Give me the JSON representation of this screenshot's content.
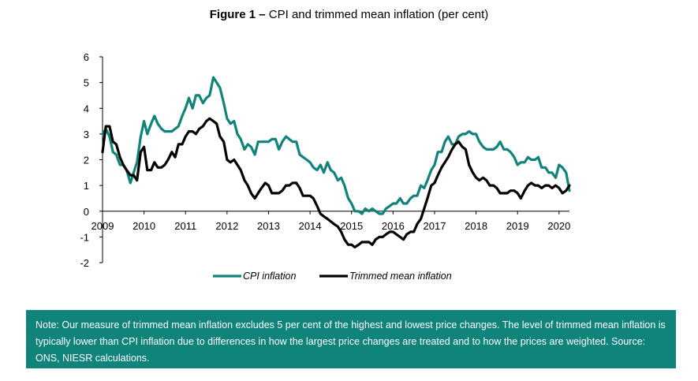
{
  "header": {
    "figure_label": "Figure 1 –",
    "figure_title": "CPI and trimmed mean inflation (per cent)"
  },
  "note": {
    "text": "Note: Our measure of trimmed mean inflation excludes 5 per cent of the highest and lowest price changes. The level of trimmed mean inflation is typically lower than CPI inflation due to differences in how the largest price changes are treated and to how the prices are weighted. Source: ONS, NIESR calculations."
  },
  "colors": {
    "cpi": "#10837a",
    "trimmed": "#000000",
    "note_bg": "#10837a"
  },
  "chart_data": {
    "type": "line",
    "title": "CPI and trimmed mean inflation (per cent)",
    "xlabel": "",
    "ylabel": "",
    "xlim": [
      2009.0,
      2020.25
    ],
    "ylim": [
      -2,
      6
    ],
    "yticks": [
      "6",
      "5",
      "4",
      "3",
      "2",
      "1",
      "0",
      "-1",
      "-2"
    ],
    "ytick_values": [
      6,
      5,
      4,
      3,
      2,
      1,
      0,
      -1,
      -2
    ],
    "xticks": [
      "2009",
      "2010",
      "2011",
      "2012",
      "2013",
      "2014",
      "2015",
      "2016",
      "2017",
      "2018",
      "2019",
      "2020"
    ],
    "xtick_values": [
      2009,
      2010,
      2011,
      2012,
      2013,
      2014,
      2015,
      2016,
      2017,
      2018,
      2019,
      2020
    ],
    "grid": false,
    "legend": "bottom",
    "series": [
      {
        "name": "CPI inflation",
        "x": [
          2009.0,
          2009.08,
          2009.17,
          2009.25,
          2009.33,
          2009.42,
          2009.5,
          2009.58,
          2009.67,
          2009.75,
          2009.83,
          2009.92,
          2010.0,
          2010.08,
          2010.17,
          2010.25,
          2010.33,
          2010.42,
          2010.5,
          2010.58,
          2010.67,
          2010.75,
          2010.83,
          2010.92,
          2011.0,
          2011.08,
          2011.17,
          2011.25,
          2011.33,
          2011.42,
          2011.5,
          2011.58,
          2011.67,
          2011.75,
          2011.83,
          2011.92,
          2012.0,
          2012.08,
          2012.17,
          2012.25,
          2012.33,
          2012.42,
          2012.5,
          2012.58,
          2012.67,
          2012.75,
          2012.83,
          2012.92,
          2013.0,
          2013.08,
          2013.17,
          2013.25,
          2013.33,
          2013.42,
          2013.5,
          2013.58,
          2013.67,
          2013.75,
          2013.83,
          2013.92,
          2014.0,
          2014.08,
          2014.17,
          2014.25,
          2014.33,
          2014.42,
          2014.5,
          2014.58,
          2014.67,
          2014.75,
          2014.83,
          2014.92,
          2015.0,
          2015.08,
          2015.17,
          2015.25,
          2015.33,
          2015.42,
          2015.5,
          2015.58,
          2015.67,
          2015.75,
          2015.83,
          2015.92,
          2016.0,
          2016.08,
          2016.17,
          2016.25,
          2016.33,
          2016.42,
          2016.5,
          2016.58,
          2016.67,
          2016.75,
          2016.83,
          2016.92,
          2017.0,
          2017.08,
          2017.17,
          2017.25,
          2017.33,
          2017.42,
          2017.5,
          2017.58,
          2017.67,
          2017.75,
          2017.83,
          2017.92,
          2018.0,
          2018.08,
          2018.17,
          2018.25,
          2018.33,
          2018.42,
          2018.5,
          2018.58,
          2018.67,
          2018.75,
          2018.83,
          2018.92,
          2019.0,
          2019.08,
          2019.17,
          2019.25,
          2019.33,
          2019.42,
          2019.5,
          2019.58,
          2019.67,
          2019.75,
          2019.83,
          2019.92,
          2020.0,
          2020.08,
          2020.17,
          2020.25
        ],
        "values": [
          3.0,
          3.2,
          2.9,
          2.3,
          2.2,
          1.8,
          1.8,
          1.6,
          1.1,
          1.5,
          1.9,
          2.9,
          3.5,
          3.0,
          3.4,
          3.7,
          3.4,
          3.2,
          3.1,
          3.1,
          3.1,
          3.2,
          3.3,
          3.7,
          4.0,
          4.4,
          4.0,
          4.5,
          4.5,
          4.2,
          4.4,
          4.5,
          5.2,
          5.0,
          4.8,
          4.2,
          3.6,
          3.4,
          3.5,
          3.0,
          2.8,
          2.4,
          2.6,
          2.5,
          2.2,
          2.7,
          2.7,
          2.7,
          2.7,
          2.8,
          2.8,
          2.4,
          2.7,
          2.9,
          2.8,
          2.7,
          2.7,
          2.2,
          2.1,
          2.0,
          1.9,
          1.7,
          1.6,
          1.8,
          1.5,
          1.9,
          1.6,
          1.5,
          1.2,
          1.3,
          1.0,
          0.5,
          0.3,
          0.0,
          0.0,
          -0.1,
          0.1,
          0.0,
          0.1,
          0.0,
          -0.1,
          -0.1,
          0.1,
          0.2,
          0.3,
          0.3,
          0.5,
          0.3,
          0.3,
          0.5,
          0.6,
          0.6,
          1.0,
          0.9,
          1.2,
          1.6,
          1.8,
          2.3,
          2.3,
          2.7,
          2.9,
          2.6,
          2.6,
          2.9,
          3.0,
          3.0,
          3.1,
          3.0,
          3.0,
          2.7,
          2.5,
          2.4,
          2.4,
          2.4,
          2.5,
          2.7,
          2.4,
          2.4,
          2.3,
          2.1,
          1.8,
          1.9,
          1.9,
          2.1,
          2.0,
          2.0,
          2.1,
          1.7,
          1.7,
          1.5,
          1.5,
          1.3,
          1.8,
          1.7,
          1.5,
          0.8
        ]
      },
      {
        "name": "Trimmed mean inflation",
        "x": [
          2009.0,
          2009.08,
          2009.17,
          2009.25,
          2009.33,
          2009.42,
          2009.5,
          2009.58,
          2009.67,
          2009.75,
          2009.83,
          2009.92,
          2010.0,
          2010.08,
          2010.17,
          2010.25,
          2010.33,
          2010.42,
          2010.5,
          2010.58,
          2010.67,
          2010.75,
          2010.83,
          2010.92,
          2011.0,
          2011.08,
          2011.17,
          2011.25,
          2011.33,
          2011.42,
          2011.5,
          2011.58,
          2011.67,
          2011.75,
          2011.83,
          2011.92,
          2012.0,
          2012.08,
          2012.17,
          2012.25,
          2012.33,
          2012.42,
          2012.5,
          2012.58,
          2012.67,
          2012.75,
          2012.83,
          2012.92,
          2013.0,
          2013.08,
          2013.17,
          2013.25,
          2013.33,
          2013.42,
          2013.5,
          2013.58,
          2013.67,
          2013.75,
          2013.83,
          2013.92,
          2014.0,
          2014.08,
          2014.17,
          2014.25,
          2014.33,
          2014.42,
          2014.5,
          2014.58,
          2014.67,
          2014.75,
          2014.83,
          2014.92,
          2015.0,
          2015.08,
          2015.17,
          2015.25,
          2015.33,
          2015.42,
          2015.5,
          2015.58,
          2015.67,
          2015.75,
          2015.83,
          2015.92,
          2016.0,
          2016.08,
          2016.17,
          2016.25,
          2016.33,
          2016.42,
          2016.5,
          2016.58,
          2016.67,
          2016.75,
          2016.83,
          2016.92,
          2017.0,
          2017.08,
          2017.17,
          2017.25,
          2017.33,
          2017.42,
          2017.5,
          2017.58,
          2017.67,
          2017.75,
          2017.83,
          2017.92,
          2018.0,
          2018.08,
          2018.17,
          2018.25,
          2018.33,
          2018.42,
          2018.5,
          2018.58,
          2018.67,
          2018.75,
          2018.83,
          2018.92,
          2019.0,
          2019.08,
          2019.17,
          2019.25,
          2019.33,
          2019.42,
          2019.5,
          2019.58,
          2019.67,
          2019.75,
          2019.83,
          2019.92,
          2020.0,
          2020.08,
          2020.17,
          2020.25
        ],
        "values": [
          2.3,
          3.3,
          3.3,
          2.7,
          2.6,
          2.1,
          1.8,
          1.6,
          1.4,
          1.4,
          1.2,
          2.3,
          2.5,
          1.6,
          1.6,
          1.9,
          1.7,
          1.7,
          1.8,
          2.0,
          2.3,
          2.1,
          2.6,
          2.6,
          2.9,
          3.1,
          3.1,
          3.0,
          3.2,
          3.3,
          3.5,
          3.6,
          3.5,
          3.4,
          2.9,
          2.7,
          2.0,
          1.9,
          2.0,
          1.8,
          1.6,
          1.2,
          1.0,
          0.7,
          0.5,
          0.7,
          0.9,
          1.1,
          1.0,
          0.7,
          0.7,
          0.7,
          0.8,
          1.0,
          1.0,
          1.1,
          1.1,
          0.9,
          0.6,
          0.6,
          0.6,
          0.5,
          0.2,
          -0.1,
          -0.2,
          -0.3,
          -0.4,
          -0.5,
          -0.6,
          -0.8,
          -1.1,
          -1.3,
          -1.3,
          -1.4,
          -1.3,
          -1.2,
          -1.2,
          -1.2,
          -1.3,
          -1.1,
          -1.0,
          -1.0,
          -0.9,
          -0.8,
          -0.8,
          -0.9,
          -1.0,
          -1.1,
          -0.9,
          -0.8,
          -0.8,
          -0.5,
          -0.3,
          0.1,
          0.5,
          1.0,
          1.1,
          1.4,
          1.7,
          1.9,
          2.1,
          2.4,
          2.6,
          2.7,
          2.5,
          2.4,
          1.8,
          1.5,
          1.3,
          1.2,
          1.3,
          1.2,
          1.0,
          1.0,
          0.9,
          0.7,
          0.7,
          0.7,
          0.8,
          0.8,
          0.7,
          0.5,
          0.8,
          1.0,
          1.1,
          1.0,
          1.0,
          0.9,
          1.0,
          1.0,
          0.9,
          1.0,
          0.9,
          0.7,
          0.8,
          1.0
        ]
      }
    ]
  }
}
